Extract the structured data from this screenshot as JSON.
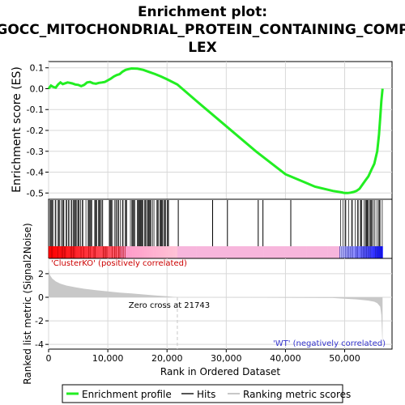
{
  "title_lines": [
    "Enrichment plot:",
    "GOCC_MITOCHONDRIAL_PROTEIN_CONTAINING_COMP",
    "LEX"
  ],
  "colors": {
    "enrichment": "#22ee22",
    "hits": "#000000",
    "positive_band": "#ff0000",
    "negative_band": "#0000ff",
    "metric_fill": "#c8c8c8",
    "zero_cross_line": "#c8c8c8"
  },
  "chart_data": [
    {
      "type": "line",
      "id": "enrichment-profile",
      "ylabel": "Enrichment score (ES)",
      "ylim": [
        -0.53,
        0.13
      ],
      "yticks": [
        0.1,
        0.0,
        -0.1,
        -0.2,
        -0.3,
        -0.4,
        -0.5
      ],
      "ytick_labels": [
        "0.1",
        "0.0",
        "-0.1",
        "-0.2",
        "-0.3",
        "-0.4",
        "-0.5"
      ],
      "xlim": [
        0,
        58000
      ],
      "grid": true,
      "x": [
        0,
        400,
        800,
        1200,
        1600,
        2000,
        2400,
        2800,
        3200,
        3600,
        4000,
        4500,
        5000,
        5500,
        6000,
        6500,
        7000,
        7500,
        8000,
        8500,
        9000,
        9500,
        10000,
        10500,
        11000,
        11500,
        12000,
        12500,
        13000,
        13500,
        14000,
        15000,
        16000,
        17000,
        18000,
        19000,
        20000,
        21743,
        25000,
        30000,
        35000,
        40000,
        45000,
        48000,
        49500,
        50000,
        50500,
        51000,
        51500,
        52000,
        52500,
        53000,
        53500,
        54000,
        54500,
        55000,
        55500,
        55800,
        56000,
        56200,
        56400
      ],
      "y": [
        0.0,
        0.015,
        0.008,
        0.005,
        0.02,
        0.03,
        0.022,
        0.026,
        0.03,
        0.028,
        0.025,
        0.02,
        0.018,
        0.012,
        0.018,
        0.03,
        0.032,
        0.026,
        0.024,
        0.028,
        0.03,
        0.032,
        0.04,
        0.048,
        0.058,
        0.065,
        0.07,
        0.082,
        0.09,
        0.094,
        0.097,
        0.096,
        0.09,
        0.08,
        0.07,
        0.058,
        0.045,
        0.02,
        -0.06,
        -0.18,
        -0.3,
        -0.41,
        -0.47,
        -0.49,
        -0.497,
        -0.5,
        -0.5,
        -0.498,
        -0.495,
        -0.49,
        -0.48,
        -0.46,
        -0.44,
        -0.42,
        -0.39,
        -0.36,
        -0.3,
        -0.22,
        -0.14,
        -0.06,
        0.0
      ]
    },
    {
      "type": "scatter",
      "id": "hits",
      "xlim": [
        0,
        58000
      ],
      "hit_segments": [
        [
          0,
          6000
        ],
        [
          6300,
          14500
        ],
        [
          14600,
          20500
        ],
        [
          49200,
          56400
        ]
      ],
      "hits_isolated": [
        21900,
        27700,
        30200,
        35400,
        36200,
        40900
      ]
    },
    {
      "type": "area",
      "id": "ranked-list-metric",
      "ylabel": "Ranked list metric (Signal2Noise)",
      "xlabel": "Rank in Ordered Dataset",
      "ylim": [
        -4.4,
        3.3
      ],
      "yticks": [
        2,
        0,
        -2,
        -4
      ],
      "ytick_labels": [
        "2",
        "0",
        "-2",
        "-4"
      ],
      "xlim": [
        0,
        58000
      ],
      "xticks": [
        0,
        10000,
        20000,
        30000,
        40000,
        50000
      ],
      "xtick_labels": [
        "0",
        "10,000",
        "20,000",
        "30,000",
        "40,000",
        "50,000"
      ],
      "x": [
        0,
        200,
        600,
        1200,
        2000,
        3000,
        4500,
        6000,
        8000,
        10000,
        12000,
        14000,
        16000,
        18000,
        20000,
        21743,
        30000,
        40000,
        48000,
        50000,
        52000,
        54000,
        55000,
        55500,
        56000,
        56200,
        56400
      ],
      "y": [
        2.5,
        1.9,
        1.6,
        1.35,
        1.15,
        1.0,
        0.85,
        0.72,
        0.6,
        0.5,
        0.4,
        0.32,
        0.24,
        0.16,
        0.08,
        0.0,
        -0.02,
        -0.04,
        -0.06,
        -0.12,
        -0.18,
        -0.28,
        -0.38,
        -0.5,
        -0.8,
        -1.5,
        -4.2
      ],
      "zero_cross_x": 21743,
      "zero_cross_label": "Zero cross at 21743",
      "positive_label": "'ClusterKO' (positively correlated)",
      "negative_label": "'WT' (negatively correlated)"
    }
  ],
  "legend": {
    "placement": "bottom",
    "items": [
      {
        "label": "Enrichment profile",
        "color": "#22ee22"
      },
      {
        "label": "Hits",
        "color": "#555555"
      },
      {
        "label": "Ranking metric scores",
        "color": "#c8c8c8"
      }
    ]
  }
}
